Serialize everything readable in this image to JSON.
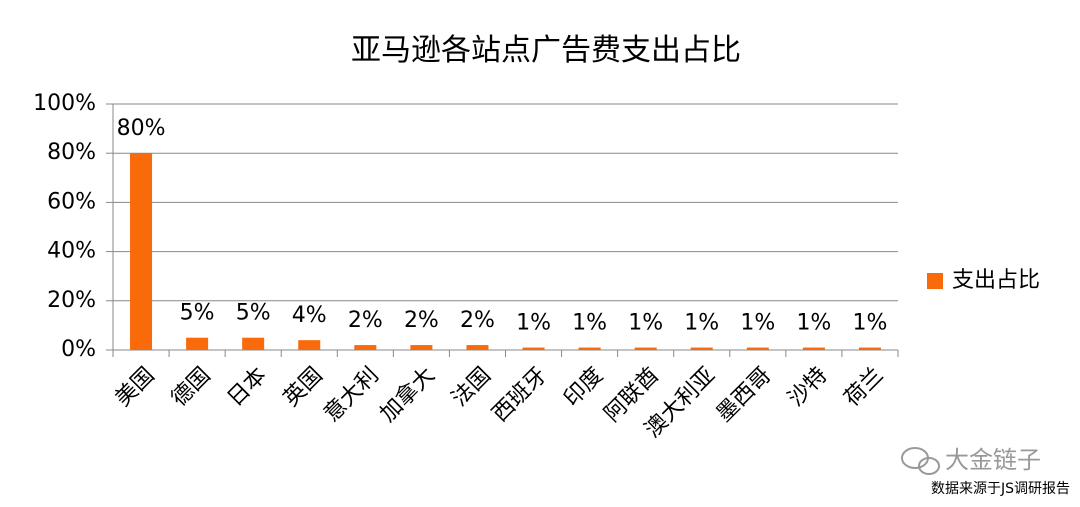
{
  "chart_data": {
    "type": "bar",
    "title": "亚马逊各站点广告费支出占比",
    "categories": [
      "美国",
      "德国",
      "日本",
      "英国",
      "意大利",
      "加拿大",
      "法国",
      "西班牙",
      "印度",
      "阿联酋",
      "澳大利亚",
      "墨西哥",
      "沙特",
      "荷兰"
    ],
    "series": [
      {
        "name": "支出占比",
        "color": "#f96a0a",
        "values": [
          80,
          5,
          5,
          4,
          2,
          2,
          2,
          1,
          1,
          1,
          1,
          1,
          1,
          1
        ],
        "value_labels": [
          "80%",
          "5%",
          "5%",
          "4%",
          "2%",
          "2%",
          "2%",
          "1%",
          "1%",
          "1%",
          "1%",
          "1%",
          "1%",
          "1%"
        ]
      }
    ],
    "ylim": [
      0,
      100
    ],
    "yticks": [
      {
        "value": 0,
        "label": "0%"
      },
      {
        "value": 20,
        "label": "20%"
      },
      {
        "value": 40,
        "label": "40%"
      },
      {
        "value": 60,
        "label": "60%"
      },
      {
        "value": 80,
        "label": "80%"
      },
      {
        "value": 100,
        "label": "100%"
      }
    ],
    "grid": true,
    "legend": "right",
    "annotations": [
      "大金链子",
      "数据来源于JS调研报告"
    ]
  }
}
